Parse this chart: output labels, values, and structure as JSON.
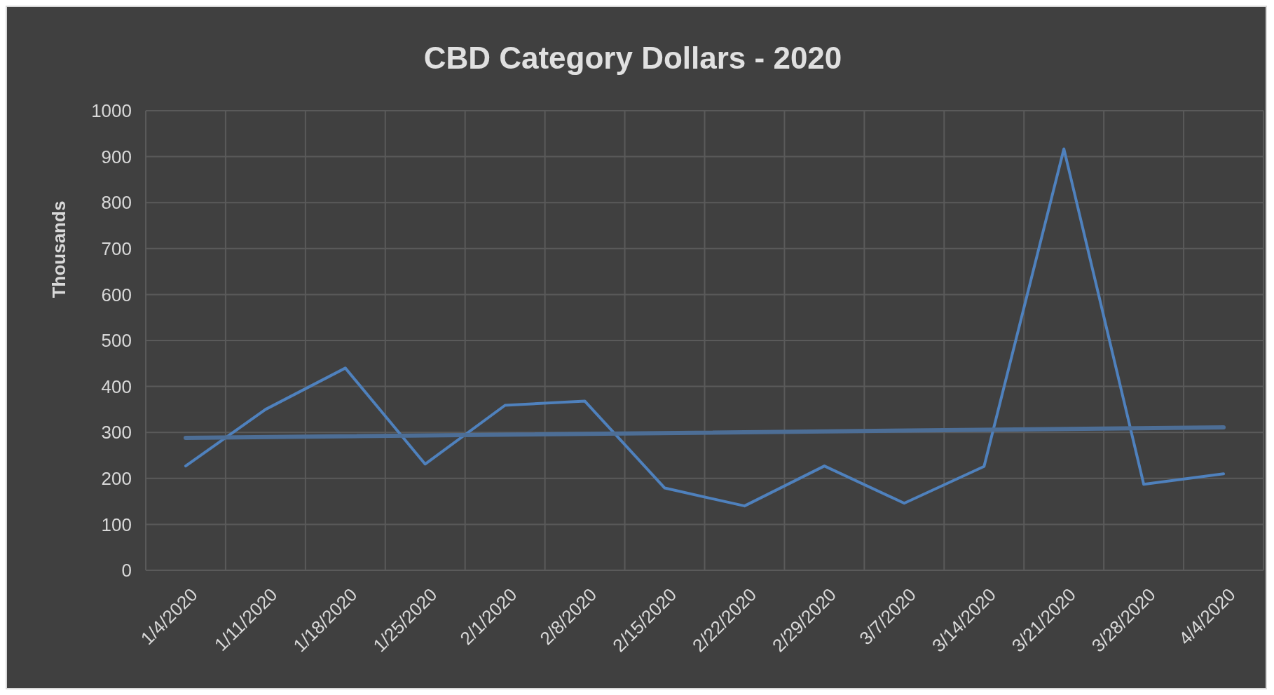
{
  "chart_data": {
    "type": "line",
    "title": "CBD Category Dollars - 2020",
    "ylabel": "Thousands",
    "categories": [
      "1/4/2020",
      "1/11/2020",
      "1/18/2020",
      "1/25/2020",
      "2/1/2020",
      "2/8/2020",
      "2/15/2020",
      "2/22/2020",
      "2/29/2020",
      "3/7/2020",
      "3/14/2020",
      "3/21/2020",
      "3/28/2020",
      "4/4/2020"
    ],
    "series": [
      {
        "color": "#4f81bd",
        "values": [
          227,
          350,
          440,
          231,
          359,
          368,
          179,
          140,
          227,
          146,
          226,
          917,
          187,
          210
        ]
      },
      {
        "type": "line",
        "color": "#4d6e96",
        "x": [
          "1/4/2020",
          "4/4/2020"
        ],
        "values": [
          288,
          311
        ]
      }
    ],
    "ylim": [
      0,
      1000
    ],
    "yticks": [
      0,
      100,
      200,
      300,
      400,
      500,
      600,
      700,
      800,
      900,
      1000
    ],
    "grid": true
  }
}
